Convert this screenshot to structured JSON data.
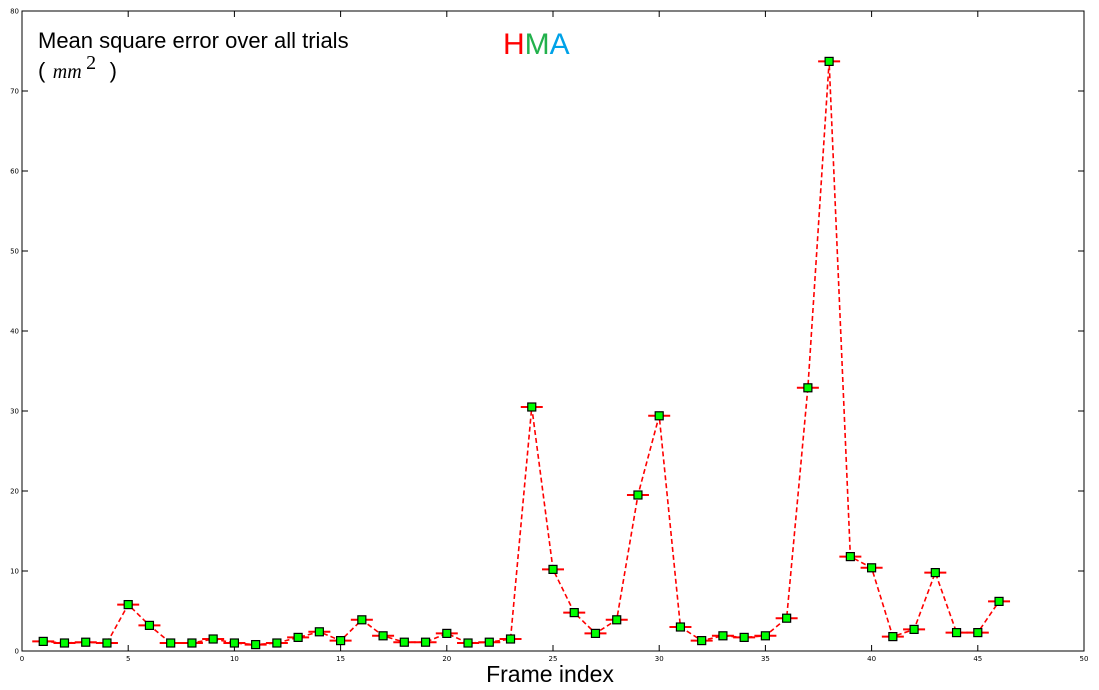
{
  "chart_data": {
    "type": "line",
    "title_letters": [
      {
        "text": "H",
        "color": "#ff0000"
      },
      {
        "text": "M",
        "color": "#22b14c"
      },
      {
        "text": "A",
        "color": "#00a2e8"
      }
    ],
    "ylabel": "Mean square error over all trials",
    "ylabel_unit_open": "(",
    "ylabel_unit": "mm",
    "ylabel_unit_sup": "2",
    "ylabel_unit_close": ")",
    "xlabel": "Frame index",
    "xlim": [
      0,
      50
    ],
    "ylim": [
      0,
      80
    ],
    "xticks": [
      0,
      5,
      10,
      15,
      20,
      25,
      30,
      35,
      40,
      45,
      50
    ],
    "yticks": [
      0,
      10,
      20,
      30,
      40,
      50,
      60,
      70,
      80
    ],
    "grid": false,
    "line_color": "#ff0000",
    "marker_color": "#00ff00",
    "marker_edge": "#000000",
    "series": [
      {
        "x": [
          1,
          2,
          3,
          4,
          5,
          6,
          7,
          8,
          9,
          10,
          11,
          12,
          13,
          14,
          15,
          16,
          17,
          18,
          19,
          20,
          21,
          22,
          23,
          24,
          25,
          26,
          27,
          28,
          29,
          30,
          31,
          32,
          33,
          34,
          35,
          36,
          37,
          38,
          39,
          40,
          41,
          42,
          43,
          44,
          45,
          46
        ],
        "values": [
          1.2,
          1.0,
          1.1,
          1.0,
          5.8,
          3.2,
          1.0,
          1.0,
          1.5,
          1.0,
          0.8,
          1.0,
          1.7,
          2.4,
          1.3,
          3.9,
          1.9,
          1.1,
          1.1,
          2.2,
          1.0,
          1.1,
          1.5,
          30.5,
          10.2,
          4.8,
          2.2,
          3.9,
          19.5,
          29.4,
          3.0,
          1.3,
          1.9,
          1.7,
          1.9,
          4.1,
          32.9,
          73.7,
          11.8,
          10.4,
          1.8,
          2.7,
          9.8,
          2.3,
          2.3,
          6.2
        ]
      }
    ]
  }
}
